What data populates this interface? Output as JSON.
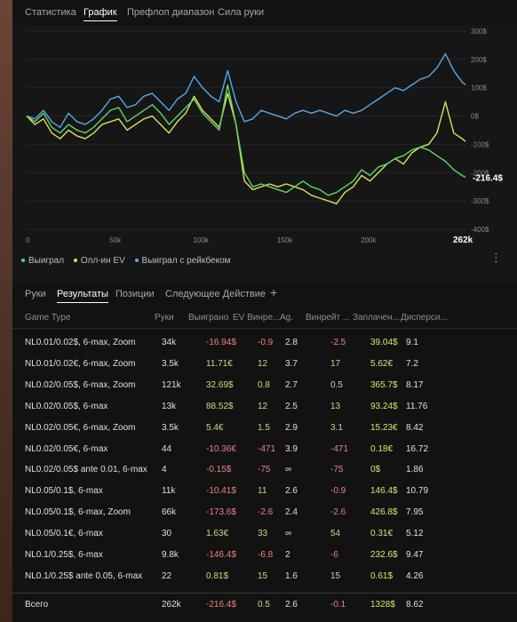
{
  "top_tabs": [
    "Статистика",
    "График",
    "Префлоп диапазон",
    "Сила руки"
  ],
  "active_top_tab": 1,
  "chart_data": {
    "type": "line",
    "x_ticks": [
      "0",
      "50k",
      "100k",
      "150k",
      "200k",
      "262k"
    ],
    "x_tick_values": [
      0,
      50000,
      100000,
      150000,
      200000,
      262000
    ],
    "y_ticks": [
      "300$",
      "200$",
      "100$",
      "0$",
      "-100$",
      "-200$",
      "-300$",
      "-400$"
    ],
    "y_tick_values": [
      300,
      200,
      100,
      0,
      -100,
      -200,
      -300,
      -400
    ],
    "xlim": [
      0,
      262000
    ],
    "ylim": [
      -400,
      300
    ],
    "grid": "horizontal",
    "end_label": "-216.4$",
    "series": [
      {
        "name": "Выиграл с рейкбеком",
        "color": "#5aa8e8",
        "x": [
          0,
          5000,
          10000,
          15000,
          20000,
          25000,
          30000,
          35000,
          40000,
          45000,
          50000,
          55000,
          60000,
          65000,
          70000,
          75000,
          80000,
          85000,
          90000,
          95000,
          100000,
          105000,
          110000,
          115000,
          120000,
          125000,
          130000,
          135000,
          140000,
          145000,
          150000,
          155000,
          160000,
          165000,
          170000,
          175000,
          180000,
          185000,
          190000,
          195000,
          200000,
          205000,
          210000,
          215000,
          220000,
          225000,
          230000,
          235000,
          240000,
          245000,
          250000,
          255000,
          260000,
          262000
        ],
        "y": [
          0,
          -10,
          20,
          -20,
          -40,
          10,
          -20,
          -30,
          -10,
          20,
          60,
          70,
          30,
          40,
          70,
          80,
          50,
          20,
          60,
          80,
          140,
          100,
          70,
          50,
          160,
          50,
          -20,
          -10,
          20,
          10,
          0,
          -10,
          10,
          20,
          10,
          20,
          10,
          0,
          20,
          10,
          20,
          40,
          60,
          80,
          100,
          90,
          110,
          130,
          140,
          170,
          220,
          160,
          120,
          110
        ]
      },
      {
        "name": "Олл-ин EV",
        "color": "#d8e35a",
        "x": [
          0,
          5000,
          10000,
          15000,
          20000,
          25000,
          30000,
          35000,
          40000,
          45000,
          50000,
          55000,
          60000,
          65000,
          70000,
          75000,
          80000,
          85000,
          90000,
          95000,
          100000,
          105000,
          110000,
          115000,
          120000,
          125000,
          130000,
          135000,
          140000,
          145000,
          150000,
          155000,
          160000,
          165000,
          170000,
          175000,
          180000,
          185000,
          190000,
          195000,
          200000,
          205000,
          210000,
          215000,
          220000,
          225000,
          230000,
          235000,
          240000,
          245000,
          250000,
          255000,
          260000,
          262000
        ],
        "y": [
          0,
          -30,
          -10,
          -60,
          -80,
          -50,
          -70,
          -80,
          -60,
          -30,
          -20,
          -10,
          -50,
          -30,
          -10,
          0,
          -30,
          -60,
          -20,
          10,
          70,
          20,
          -10,
          -40,
          80,
          -30,
          -230,
          -260,
          -250,
          -240,
          -250,
          -240,
          -250,
          -260,
          -280,
          -290,
          -300,
          -310,
          -270,
          -250,
          -210,
          -230,
          -200,
          -170,
          -150,
          -170,
          -130,
          -110,
          -100,
          -60,
          50,
          -60,
          -80,
          -90
        ]
      },
      {
        "name": "Выиграл",
        "color": "#5fd66a",
        "x": [
          0,
          5000,
          10000,
          15000,
          20000,
          25000,
          30000,
          35000,
          40000,
          45000,
          50000,
          55000,
          60000,
          65000,
          70000,
          75000,
          80000,
          85000,
          90000,
          95000,
          100000,
          105000,
          110000,
          115000,
          120000,
          125000,
          130000,
          135000,
          140000,
          145000,
          150000,
          155000,
          160000,
          165000,
          170000,
          175000,
          180000,
          185000,
          190000,
          195000,
          200000,
          205000,
          210000,
          215000,
          220000,
          225000,
          230000,
          235000,
          240000,
          245000,
          250000,
          255000,
          260000,
          262000
        ],
        "y": [
          0,
          -20,
          10,
          -40,
          -60,
          -30,
          -50,
          -60,
          -40,
          -10,
          20,
          30,
          -20,
          0,
          20,
          40,
          10,
          -30,
          0,
          30,
          60,
          10,
          -20,
          -50,
          110,
          -30,
          -200,
          -250,
          -240,
          -250,
          -260,
          -270,
          -250,
          -230,
          -250,
          -260,
          -280,
          -270,
          -250,
          -230,
          -190,
          -210,
          -180,
          -170,
          -150,
          -140,
          -120,
          -110,
          -120,
          -140,
          -160,
          -190,
          -210,
          -216
        ]
      }
    ],
    "legend": [
      "Выиграл",
      "Олл-ин EV",
      "Выиграл с рейкбеком"
    ]
  },
  "bottom_tabs": [
    "Руки",
    "Результаты",
    "Позиции",
    "Следующее Действие"
  ],
  "active_bottom_tab": 1,
  "add_tab_icon": "+",
  "more_icon": "⋮",
  "table": {
    "headers": [
      "Game Type",
      "Руки",
      "Выиграно",
      "EV Винре...",
      "Ag.",
      "Винрейт ...",
      "Заплачен...",
      "Дисперси..."
    ],
    "rows": [
      {
        "game": "NL0.01/0.02$, 6-max, Zoom",
        "hands": "34k",
        "won": "-16.94$",
        "ev": "-0.9",
        "ag": "2.8",
        "wr": "-2.5",
        "paid": "39.04$",
        "disp": "9.1"
      },
      {
        "game": "NL0.01/0.02€, 6-max, Zoom",
        "hands": "3.5k",
        "won": "11.71€",
        "ev": "12",
        "ag": "3.7",
        "wr": "17",
        "paid": "5.62€",
        "disp": "7.2"
      },
      {
        "game": "NL0.02/0.05$, 6-max, Zoom",
        "hands": "121k",
        "won": "32.69$",
        "ev": "0.8",
        "ag": "2.7",
        "wr": "0.5",
        "paid": "365.7$",
        "disp": "8.17"
      },
      {
        "game": "NL0.02/0.05$, 6-max",
        "hands": "13k",
        "won": "88.52$",
        "ev": "12",
        "ag": "2.5",
        "wr": "13",
        "paid": "93.24$",
        "disp": "11.76"
      },
      {
        "game": "NL0.02/0.05€, 6-max, Zoom",
        "hands": "3.5k",
        "won": "5.4€",
        "ev": "1.5",
        "ag": "2.9",
        "wr": "3.1",
        "paid": "15.23€",
        "disp": "8.42"
      },
      {
        "game": "NL0.02/0.05€, 6-max",
        "hands": "44",
        "won": "-10.36€",
        "ev": "-471",
        "ag": "3.9",
        "wr": "-471",
        "paid": "0.18€",
        "disp": "16.72"
      },
      {
        "game": "NL0.02/0.05$ ante 0.01, 6-max",
        "hands": "4",
        "won": "-0.15$",
        "ev": "-75",
        "ag": "∞",
        "wr": "-75",
        "paid": "0$",
        "disp": "1.86"
      },
      {
        "game": "NL0.05/0.1$, 6-max",
        "hands": "11k",
        "won": "-10.41$",
        "ev": "11",
        "ag": "2.6",
        "wr": "-0.9",
        "paid": "146.4$",
        "disp": "10.79"
      },
      {
        "game": "NL0.05/0.1$, 6-max, Zoom",
        "hands": "66k",
        "won": "-173.6$",
        "ev": "-2.6",
        "ag": "2.4",
        "wr": "-2.6",
        "paid": "426.8$",
        "disp": "7.95"
      },
      {
        "game": "NL0.05/0.1€, 6-max",
        "hands": "30",
        "won": "1.63€",
        "ev": "33",
        "ag": "∞",
        "wr": "54",
        "paid": "0.31€",
        "disp": "5.12"
      },
      {
        "game": "NL0.1/0.25$, 6-max",
        "hands": "9.8k",
        "won": "-146.4$",
        "ev": "-6.8",
        "ag": "2",
        "wr": "-6",
        "paid": "232.6$",
        "disp": "9.47"
      },
      {
        "game": "NL0.1/0.25$ ante 0.05, 6-max",
        "hands": "22",
        "won": "0.81$",
        "ev": "15",
        "ag": "1.6",
        "wr": "15",
        "paid": "0.61$",
        "disp": "4.26"
      }
    ],
    "total": {
      "game": "Всего",
      "hands": "262k",
      "won": "-216.4$",
      "ev": "0.5",
      "ag": "2.6",
      "wr": "-0.1",
      "paid": "1328$",
      "disp": "8.62"
    }
  }
}
